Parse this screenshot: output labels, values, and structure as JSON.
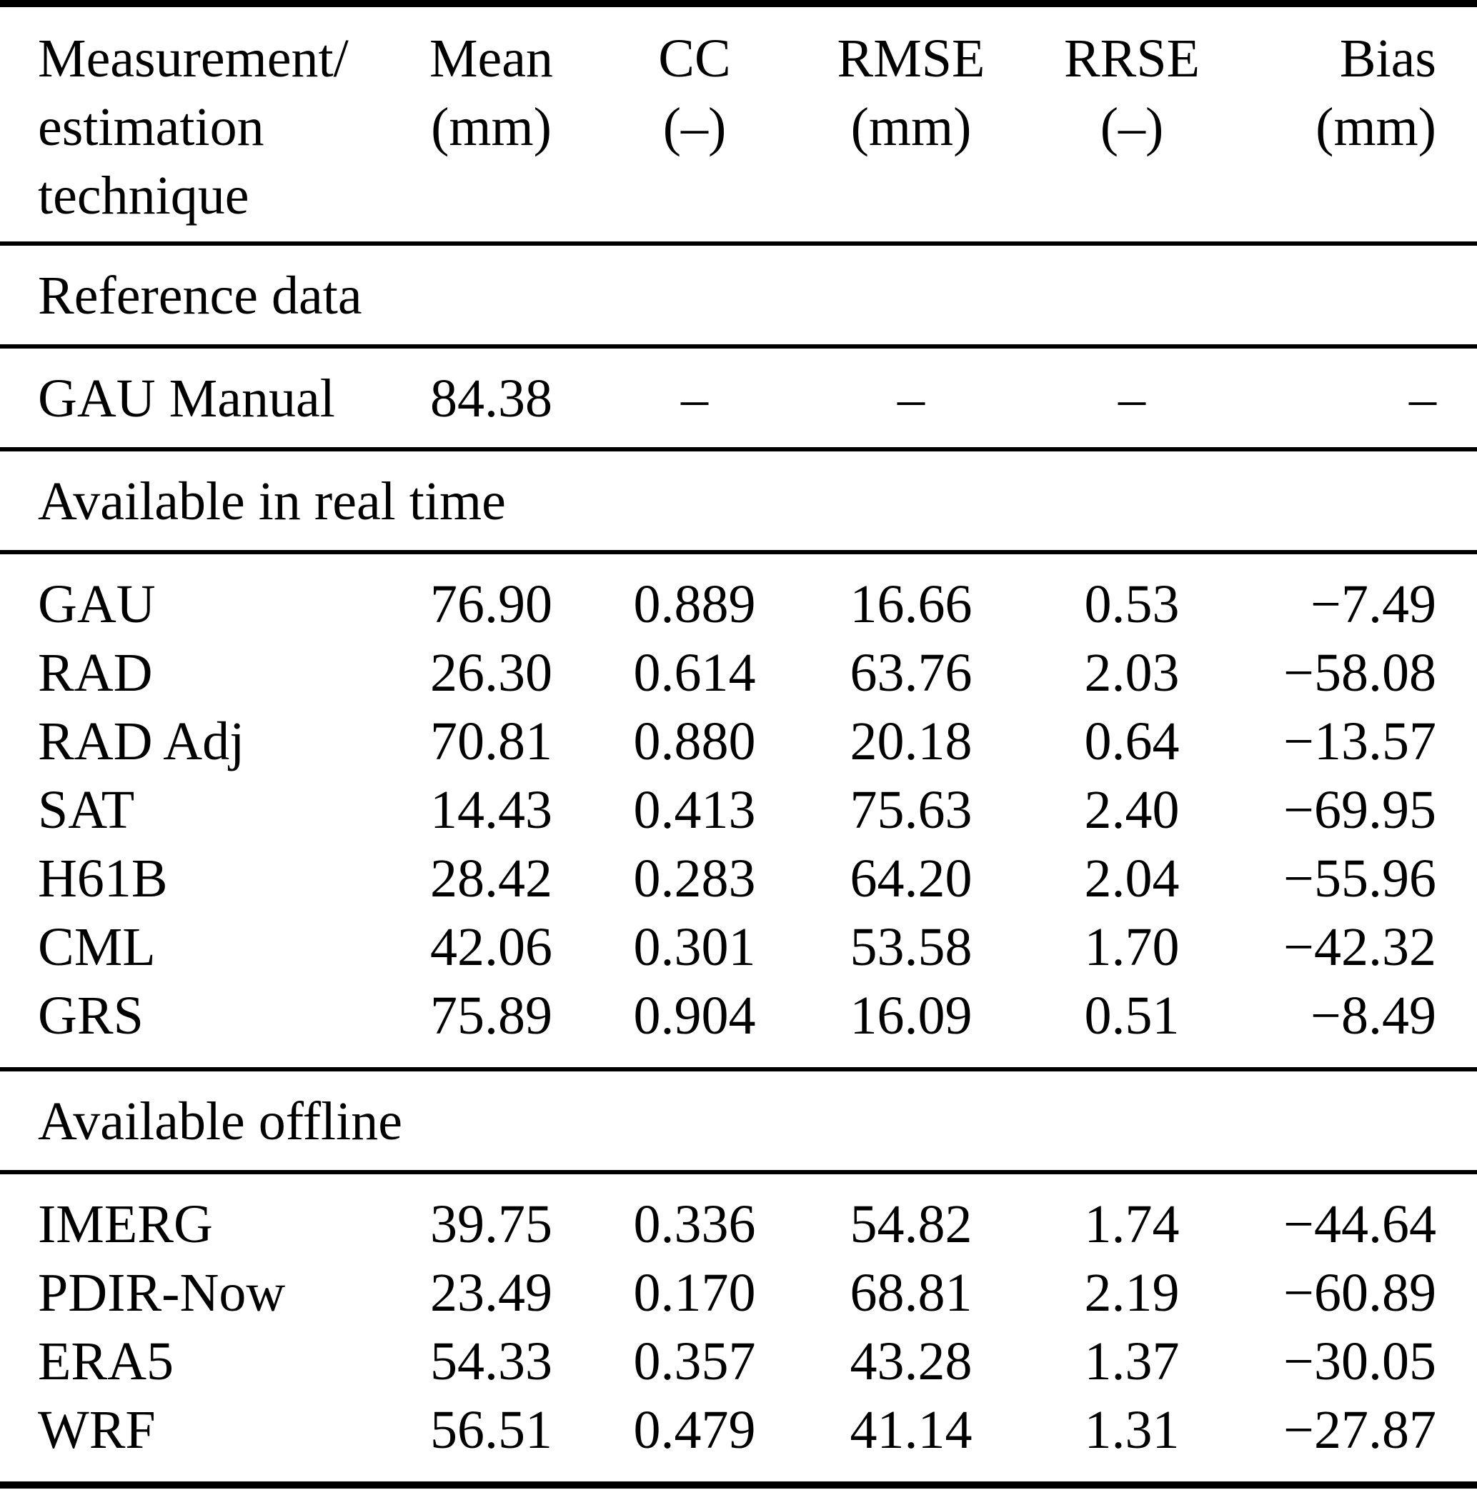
{
  "table": {
    "columns": [
      {
        "line1": "Measurement/",
        "line2": "estimation",
        "line3": "technique"
      },
      {
        "line1": "Mean",
        "line2": "(mm)"
      },
      {
        "line1": "CC",
        "line2": "(–)"
      },
      {
        "line1": "RMSE",
        "line2": "(mm)"
      },
      {
        "line1": "RRSE",
        "line2": "(–)"
      },
      {
        "line1": "Bias",
        "line2": "(mm)"
      }
    ],
    "sections": [
      {
        "title": "Reference data",
        "rows": [
          {
            "name": "GAU Manual",
            "mean": "84.38",
            "cc": "–",
            "rmse": "–",
            "rrse": "–",
            "bias": "–"
          }
        ]
      },
      {
        "title": "Available in real time",
        "rows": [
          {
            "name": "GAU",
            "mean": "76.90",
            "cc": "0.889",
            "rmse": "16.66",
            "rrse": "0.53",
            "bias": "−7.49"
          },
          {
            "name": "RAD",
            "mean": "26.30",
            "cc": "0.614",
            "rmse": "63.76",
            "rrse": "2.03",
            "bias": "−58.08"
          },
          {
            "name": "RAD Adj",
            "mean": "70.81",
            "cc": "0.880",
            "rmse": "20.18",
            "rrse": "0.64",
            "bias": "−13.57"
          },
          {
            "name": "SAT",
            "mean": "14.43",
            "cc": "0.413",
            "rmse": "75.63",
            "rrse": "2.40",
            "bias": "−69.95"
          },
          {
            "name": "H61B",
            "mean": "28.42",
            "cc": "0.283",
            "rmse": "64.20",
            "rrse": "2.04",
            "bias": "−55.96"
          },
          {
            "name": "CML",
            "mean": "42.06",
            "cc": "0.301",
            "rmse": "53.58",
            "rrse": "1.70",
            "bias": "−42.32"
          },
          {
            "name": "GRS",
            "mean": "75.89",
            "cc": "0.904",
            "rmse": "16.09",
            "rrse": "0.51",
            "bias": "−8.49"
          }
        ]
      },
      {
        "title": "Available offline",
        "rows": [
          {
            "name": "IMERG",
            "mean": "39.75",
            "cc": "0.336",
            "rmse": "54.82",
            "rrse": "1.74",
            "bias": "−44.64"
          },
          {
            "name": "PDIR-Now",
            "mean": "23.49",
            "cc": "0.170",
            "rmse": "68.81",
            "rrse": "2.19",
            "bias": "−60.89"
          },
          {
            "name": "ERA5",
            "mean": "54.33",
            "cc": "0.357",
            "rmse": "43.28",
            "rrse": "1.37",
            "bias": "−30.05"
          },
          {
            "name": "WRF",
            "mean": "56.51",
            "cc": "0.479",
            "rmse": "41.14",
            "rrse": "1.31",
            "bias": "−27.87"
          }
        ]
      }
    ]
  }
}
